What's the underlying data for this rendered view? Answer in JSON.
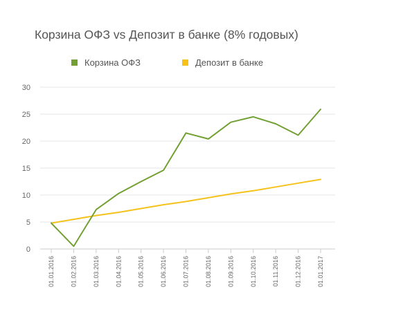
{
  "chart_data": {
    "type": "line",
    "title": "Корзина ОФЗ vs Депозит в банке (8% годовых)",
    "xlabel": "",
    "ylabel": "",
    "categories": [
      "01.01.2016",
      "01.02.2016",
      "01.03.2016",
      "01.04.2016",
      "01.05.2016",
      "01.06.2016",
      "01.07.2016",
      "01.08.2016",
      "01.09.2016",
      "01.10.2016",
      "01.11.2016",
      "01.12.2016",
      "01.01.2017"
    ],
    "ylim": [
      0,
      30
    ],
    "yticks": [
      0,
      5,
      10,
      15,
      20,
      25,
      30
    ],
    "grid": true,
    "legend_position": "top-left",
    "series": [
      {
        "name": "Корзина ОФЗ",
        "color": "#72a033",
        "values": [
          4.8,
          0.5,
          7.3,
          10.3,
          12.5,
          14.6,
          21.5,
          20.4,
          23.5,
          24.5,
          23.2,
          21.1,
          25.9
        ]
      },
      {
        "name": "Депозит в банке",
        "color": "#f5c21b",
        "values": [
          4.8,
          5.5,
          6.2,
          6.8,
          7.5,
          8.2,
          8.8,
          9.5,
          10.2,
          10.8,
          11.5,
          12.2,
          12.9
        ]
      }
    ]
  }
}
